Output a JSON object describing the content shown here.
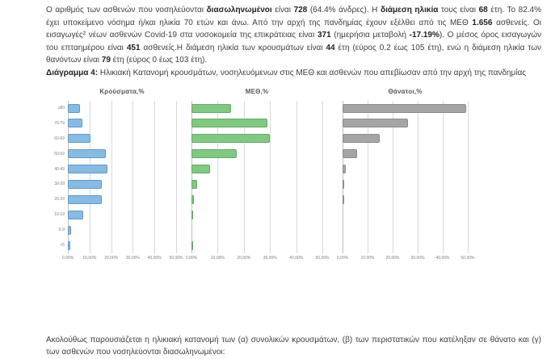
{
  "report": {
    "paragraph1_segments": [
      {
        "text": "Ο αριθμός των ασθενών που νοσηλεύονται ",
        "bold": false
      },
      {
        "text": "διασωληνωμένοι",
        "bold": true
      },
      {
        "text": " είναι ",
        "bold": false
      },
      {
        "text": "728",
        "bold": true
      },
      {
        "text": " (64.4% άνδρες).  Η ",
        "bold": false
      },
      {
        "text": "διάμεση ηλικία",
        "bold": true
      },
      {
        "text": " τους είναι ",
        "bold": false
      },
      {
        "text": "68",
        "bold": true
      },
      {
        "text": " έτη.  Το 82.4% έχει υποκείμενο νόσημα ή/και ηλικία 70 ετών και άνω. Από την αρχή της πανδημίας έχουν εξέλθει από τις ΜΕΘ ",
        "bold": false
      },
      {
        "text": "1.656",
        "bold": true
      },
      {
        "text": " ασθενείς. Οι εισαγωγές² νέων ασθενών Covid-19 στα νοσοκομεία της επικράτειας είναι ",
        "bold": false
      },
      {
        "text": "371",
        "bold": true
      },
      {
        "text": " (ημερήσια μεταβολή ",
        "bold": false
      },
      {
        "text": "-17.19%",
        "bold": true
      },
      {
        "text": "). Ο μέσος όρος εισαγωγών του επταημέρου είναι ",
        "bold": false
      },
      {
        "text": "451",
        "bold": true
      },
      {
        "text": " ασθενείς.Η διάμεση ηλικία των κρουσμάτων είναι ",
        "bold": false
      },
      {
        "text": "44",
        "bold": true
      },
      {
        "text": " έτη (εύρος 0.2 έως 105 έτη), ενώ η διάμεση ηλικία των θανόντων είναι ",
        "bold": false
      },
      {
        "text": "79",
        "bold": true
      },
      {
        "text": " έτη (εύρος 0 έως 103 έτη).",
        "bold": false
      }
    ],
    "diagram_caption_segments": [
      {
        "text": "Διάγραμμα 4:",
        "bold": true
      },
      {
        "text": " Ηλικιακή Κατανομή κρουσμάτων, νοσηλευόμενων στις ΜΕΘ και ασθενών που απεβίωσαν από την αρχή της πανδημίας",
        "bold": false
      }
    ],
    "footer_text": "Ακολούθως παρουσιάζεται η ηλικιακή κατανομή των (α) συνολικών κρουσμάτων, (β) των περιστατικών που κατέληξαν σε θάνατο και (γ) των ασθενών που νοσηλεύονται διασωληνωμένοι:"
  },
  "chart_data": [
    {
      "type": "bar",
      "orientation": "horizontal",
      "title": "Κρούσματα,%",
      "categories": [
        "≥80",
        "70-79",
        "60-69",
        "50-59",
        "40-49",
        "30-39",
        "20-29",
        "10-19",
        "5-9",
        "<5"
      ],
      "values": [
        5.5,
        6.7,
        10.5,
        17.5,
        18.4,
        15.8,
        15.8,
        7.1,
        1.5,
        1.2
      ],
      "xlim": [
        0,
        50
      ],
      "x_tick_labels": [
        "0,00%",
        "10,00%",
        "20,00%",
        "30,00%",
        "40,00%",
        "50,00%"
      ],
      "grid": true,
      "bar_color": "#89BAE0",
      "bar_border_color": "#5B9BD5"
    },
    {
      "type": "bar",
      "orientation": "horizontal",
      "title": "ΜΕΘ,%",
      "categories": [
        "≥80",
        "70-79",
        "60-69",
        "50-59",
        "40-49",
        "30-39",
        "20-29",
        "10-19",
        "5-9",
        "<5"
      ],
      "values": [
        15.0,
        29.1,
        29.9,
        17.3,
        7.0,
        2.1,
        0.8,
        0.2,
        0.0,
        0.1
      ],
      "xlim": [
        0,
        50
      ],
      "x_tick_labels": [
        "0,00%",
        "10,00%",
        "20,00%",
        "30,00%",
        "40,00%",
        "50,00%"
      ],
      "grid": true,
      "bar_color": "#82C784",
      "bar_border_color": "#5FAF5F"
    },
    {
      "type": "bar",
      "orientation": "horizontal",
      "title": "Θάνατοι,%",
      "categories": [
        "≥80",
        "70-79",
        "60-69",
        "50-59",
        "40-49",
        "30-39",
        "20-29",
        "10-19",
        "5-9",
        "<5"
      ],
      "values": [
        49.2,
        26.1,
        14.8,
        5.8,
        1.4,
        0.4,
        0.1,
        0.0,
        0.0,
        0.0
      ],
      "xlim": [
        0,
        50
      ],
      "x_tick_labels": [
        "0,00%",
        "10,00%",
        "20,00%",
        "30,00%",
        "40,00%",
        "50,00%"
      ],
      "grid": true,
      "bar_color": "#A5A5A5",
      "bar_border_color": "#8C8C8C"
    }
  ]
}
